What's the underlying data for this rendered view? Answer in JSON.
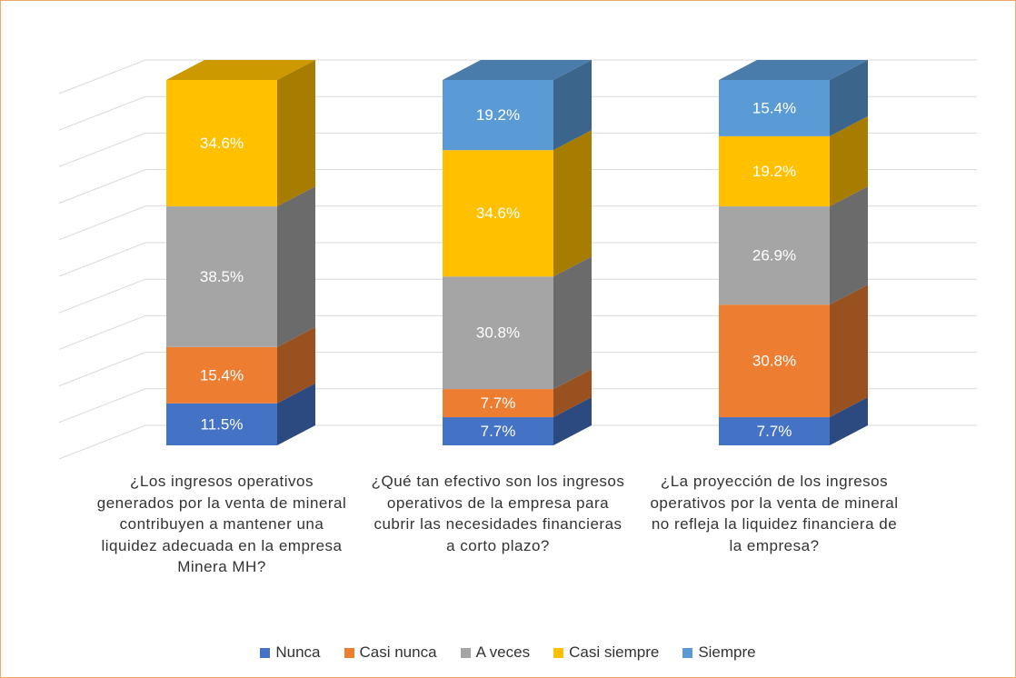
{
  "chart_data": {
    "type": "bar3d_stacked",
    "categories": [
      "¿Los ingresos operativos generados por la venta de mineral contribuyen a mantener una liquidez adecuada en la empresa Minera MH?",
      "¿Qué tan efectivo son los ingresos operativos de la empresa para cubrir las necesidades financieras a corto plazo?",
      "¿La proyección de los ingresos operativos por la venta de mineral no refleja la liquidez financiera de la empresa?"
    ],
    "series": [
      {
        "name": "Nunca",
        "color": "#4472c4",
        "values": [
          11.5,
          7.7,
          7.7
        ],
        "value_labels": [
          "11.5%",
          "7.7%",
          "7.7%"
        ]
      },
      {
        "name": "Casi nunca",
        "color": "#ed7d31",
        "values": [
          15.4,
          7.7,
          30.8
        ],
        "value_labels": [
          "15.4%",
          "7.7%",
          "30.8%"
        ]
      },
      {
        "name": "A veces",
        "color": "#a5a5a5",
        "values": [
          38.5,
          30.8,
          26.9
        ],
        "value_labels": [
          "38.5%",
          "30.8%",
          "26.9%"
        ]
      },
      {
        "name": "Casi siempre",
        "color": "#ffc000",
        "values": [
          34.6,
          34.6,
          19.2
        ],
        "value_labels": [
          "34.6%",
          "34.6%",
          "19.2%"
        ]
      },
      {
        "name": "Siempre",
        "color": "#5b9bd5",
        "values": [
          null,
          19.2,
          15.4
        ],
        "value_labels": [
          null,
          "19.2%",
          "15.4%"
        ]
      }
    ],
    "ylim": [
      0,
      100
    ],
    "yticks": [
      0,
      10,
      20,
      30,
      40,
      50,
      60,
      70,
      80,
      90,
      100
    ],
    "grid": true,
    "legend": "bottom"
  }
}
